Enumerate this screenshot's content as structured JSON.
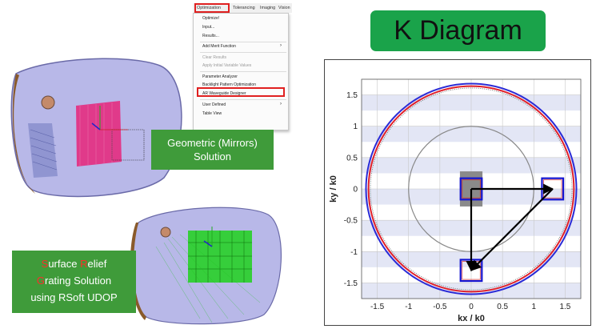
{
  "menu": {
    "bar_items": [
      "Optimization",
      "Tolerancing",
      "Imaging",
      "Vision"
    ],
    "items": [
      {
        "label": "Optimize!",
        "enabled": true
      },
      {
        "label": "Input...",
        "enabled": true
      },
      {
        "label": "Results...",
        "enabled": true
      },
      {
        "label": "Add Merit Function",
        "enabled": true,
        "submenu": true
      },
      {
        "label": "Clear Results",
        "enabled": false
      },
      {
        "label": "Apply Initial Variable Values",
        "enabled": false
      },
      {
        "label": "Parameter Analyzer",
        "enabled": true
      },
      {
        "label": "Backlight Pattern Optimization",
        "enabled": true
      },
      {
        "label": "AR Waveguide Designer",
        "enabled": true,
        "highlighted": true
      },
      {
        "label": "User Defined",
        "enabled": true,
        "submenu": true
      },
      {
        "label": "Table View",
        "enabled": true
      }
    ]
  },
  "labels": {
    "geometric": [
      "Geometric (Mirrors)",
      "Solution"
    ],
    "srg_line1": {
      "s": "S",
      "rest": "urface ",
      "r": "R",
      "rest2": "elief"
    },
    "srg_line2": {
      "g": "G",
      "rest": "rating Solution"
    },
    "srg_line3": "using RSoft UDOP"
  },
  "k_title": "K Diagram",
  "colors": {
    "green_label": "#3f9b3a",
    "title_green": "#1aa34a",
    "lens_fill": "#b8b8e8",
    "band": "#e3e6f5",
    "outer_blue": "#2b2bd6",
    "outer_red": "#e0202a",
    "box_blue": "#1414d0",
    "box_red": "#d01818"
  },
  "chart_data": {
    "type": "scatter",
    "title": "",
    "xlabel": "kx / k0",
    "ylabel": "ky / k0",
    "xlim": [
      -1.75,
      1.75
    ],
    "ylim": [
      -1.75,
      1.75
    ],
    "xticks": [
      "-1.5",
      "-1",
      "-0.5",
      "0",
      "0.5",
      "1",
      "1.5"
    ],
    "yticks": [
      "1.5",
      "1",
      "0.5",
      "0",
      "-0.5",
      "-1",
      "-1.5"
    ],
    "grid": true,
    "circles": [
      {
        "name": "inner",
        "r": 1.0,
        "color": "#888888"
      },
      {
        "name": "outer-blue",
        "r": 1.68,
        "color": "#2b2bd6"
      },
      {
        "name": "outer-red",
        "r": 1.64,
        "color": "#e0202a"
      }
    ],
    "boxes": [
      {
        "cx": 0.0,
        "cy": 0.0
      },
      {
        "cx": 1.3,
        "cy": 0.0
      },
      {
        "cx": 0.0,
        "cy": -1.3
      }
    ],
    "arrows": [
      {
        "from": [
          0.0,
          0.0
        ],
        "to": [
          1.3,
          0.0
        ]
      },
      {
        "from": [
          1.3,
          0.0
        ],
        "to": [
          0.0,
          -1.3
        ]
      },
      {
        "from": [
          0.0,
          0.0
        ],
        "to": [
          0.0,
          -1.3
        ]
      }
    ]
  }
}
